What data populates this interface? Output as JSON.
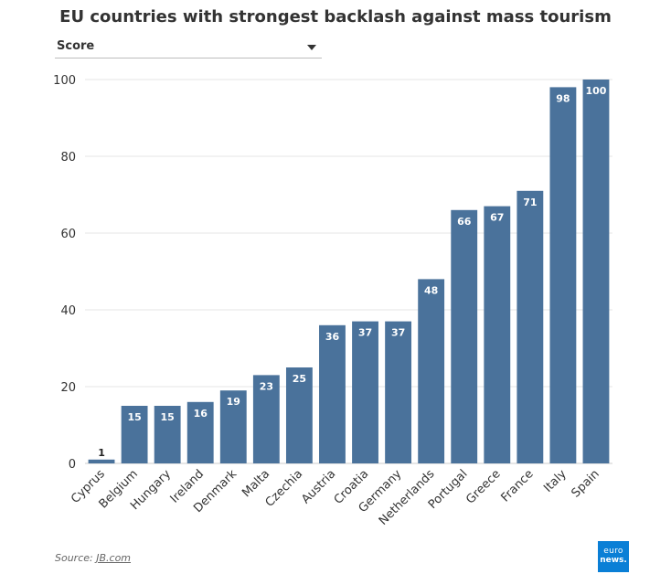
{
  "title": "EU countries with strongest backlash against mass tourism",
  "dropdown": {
    "label": "Score"
  },
  "source": {
    "prefix": "Source: ",
    "link": "JB.com"
  },
  "logo": {
    "top": "euro",
    "bottom": "news."
  },
  "colors": {
    "bar": "#4a729b",
    "grid": "#e6e6e6",
    "logo": "#0a7fd6"
  },
  "chart_data": {
    "type": "bar",
    "title": "EU countries with strongest backlash against mass tourism",
    "xlabel": "",
    "ylabel": "",
    "ylim": [
      0,
      100
    ],
    "yticks": [
      0,
      20,
      40,
      60,
      80,
      100
    ],
    "grid": true,
    "categories": [
      "Cyprus",
      "Belgium",
      "Hungary",
      "Ireland",
      "Denmark",
      "Malta",
      "Czechia",
      "Austria",
      "Croatia",
      "Germany",
      "Netherlands",
      "Portugal",
      "Greece",
      "France",
      "Italy",
      "Spain"
    ],
    "values": [
      1,
      15,
      15,
      16,
      19,
      23,
      25,
      36,
      37,
      37,
      48,
      66,
      67,
      71,
      98,
      100
    ]
  }
}
